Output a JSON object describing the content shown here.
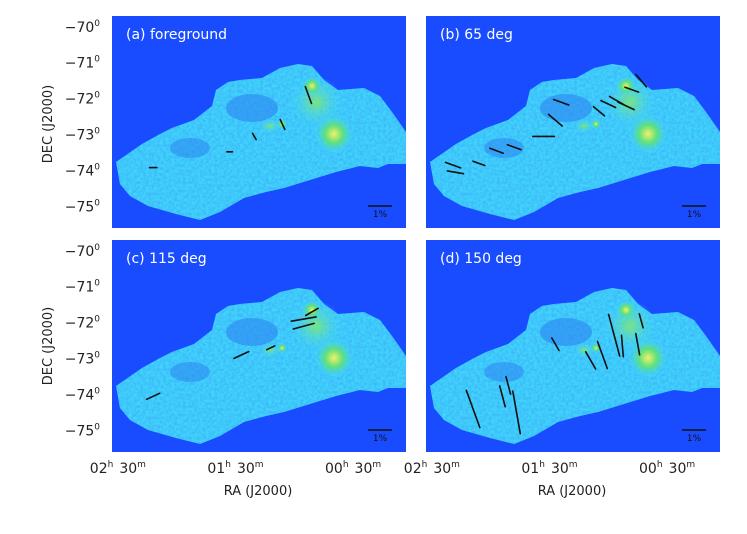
{
  "figure": {
    "ylabel": "DEC (J2000)",
    "xlabel": "RA (J2000)",
    "y_ticks": [
      {
        "deg": "−70",
        "sup": "0"
      },
      {
        "deg": "−71",
        "sup": "0"
      },
      {
        "deg": "−72",
        "sup": "0"
      },
      {
        "deg": "−73",
        "sup": "0"
      },
      {
        "deg": "−74",
        "sup": "0"
      },
      {
        "deg": "−75",
        "sup": "0"
      }
    ],
    "x_ticks": [
      {
        "h": "02",
        "hs": "h",
        "m": "30",
        "ms": "m"
      },
      {
        "h": "01",
        "hs": "h",
        "m": "30",
        "ms": "m"
      },
      {
        "h": "00",
        "hs": "h",
        "m": "30",
        "ms": "m"
      }
    ],
    "scale_bar_label": "1%",
    "colors": {
      "background": "#1a4cff",
      "map_cyan": "#3fd6ff",
      "map_green": "#39d36e",
      "map_yellow": "#d8f06a",
      "vector": "#111111",
      "panel_label": "#ffffff"
    }
  },
  "chart_data": [
    {
      "type": "scatter",
      "title": "(a) foreground",
      "xlabel": "",
      "ylabel": "DEC (J2000)",
      "ylim": [
        -75.6,
        -69.7
      ],
      "series": [
        {
          "values": [
            {
              "x": 0.88,
              "y": -71.9,
              "pa": 160,
              "len": 0.5
            },
            {
              "x": 1.1,
              "y": -72.72,
              "pa": 155,
              "len": 0.3
            },
            {
              "x": 1.34,
              "y": -73.05,
              "pa": 150,
              "len": 0.2
            },
            {
              "x": 1.55,
              "y": -73.48,
              "pa": 90,
              "len": 0.15
            },
            {
              "x": 2.2,
              "y": -73.92,
              "pa": 90,
              "len": 0.2
            }
          ]
        }
      ]
    },
    {
      "type": "scatter",
      "title": "(b) 65 deg",
      "xlabel": "",
      "ylabel": "",
      "ylim": [
        -75.6,
        -69.7
      ],
      "series": [
        {
          "values": [
            {
              "x": 0.72,
              "y": -71.5,
              "pa": 140,
              "len": 0.45
            },
            {
              "x": 0.8,
              "y": -71.75,
              "pa": 110,
              "len": 0.4
            },
            {
              "x": 0.85,
              "y": -72.2,
              "pa": 115,
              "len": 0.5
            },
            {
              "x": 0.93,
              "y": -72.05,
              "pa": 120,
              "len": 0.45
            },
            {
              "x": 1.0,
              "y": -72.15,
              "pa": 115,
              "len": 0.45
            },
            {
              "x": 1.08,
              "y": -72.35,
              "pa": 130,
              "len": 0.4
            },
            {
              "x": 1.4,
              "y": -72.1,
              "pa": 110,
              "len": 0.45
            },
            {
              "x": 1.45,
              "y": -72.6,
              "pa": 130,
              "len": 0.5
            },
            {
              "x": 1.55,
              "y": -73.05,
              "pa": 90,
              "len": 0.6
            },
            {
              "x": 1.8,
              "y": -73.35,
              "pa": 110,
              "len": 0.4
            },
            {
              "x": 1.95,
              "y": -73.45,
              "pa": 110,
              "len": 0.4
            },
            {
              "x": 2.1,
              "y": -73.8,
              "pa": 110,
              "len": 0.35
            },
            {
              "x": 2.32,
              "y": -73.85,
              "pa": 110,
              "len": 0.45
            },
            {
              "x": 2.3,
              "y": -74.05,
              "pa": 100,
              "len": 0.45
            }
          ]
        }
      ]
    },
    {
      "type": "scatter",
      "title": "(c) 115 deg",
      "xlabel": "RA (J2000)",
      "ylabel": "DEC (J2000)",
      "ylim": [
        -75.6,
        -69.7
      ],
      "series": [
        {
          "values": [
            {
              "x": 0.85,
              "y": -71.7,
              "pa": 60,
              "len": 0.4
            },
            {
              "x": 0.92,
              "y": -71.9,
              "pa": 80,
              "len": 0.7
            },
            {
              "x": 0.92,
              "y": -72.1,
              "pa": 75,
              "len": 0.6
            },
            {
              "x": 1.2,
              "y": -72.7,
              "pa": 65,
              "len": 0.25
            },
            {
              "x": 1.45,
              "y": -72.9,
              "pa": 65,
              "len": 0.45
            },
            {
              "x": 2.2,
              "y": -74.05,
              "pa": 65,
              "len": 0.4
            }
          ]
        }
      ]
    },
    {
      "type": "scatter",
      "title": "(d) 150 deg",
      "xlabel": "RA (J2000)",
      "ylabel": "",
      "ylim": [
        -75.6,
        -69.7
      ],
      "series": [
        {
          "values": [
            {
              "x": 0.72,
              "y": -71.95,
              "pa": 165,
              "len": 0.4
            },
            {
              "x": 0.75,
              "y": -72.6,
              "pa": 170,
              "len": 0.6
            },
            {
              "x": 0.88,
              "y": -72.65,
              "pa": 175,
              "len": 0.6
            },
            {
              "x": 0.95,
              "y": -72.35,
              "pa": 165,
              "len": 1.2
            },
            {
              "x": 1.05,
              "y": -72.9,
              "pa": 160,
              "len": 0.8
            },
            {
              "x": 1.15,
              "y": -73.05,
              "pa": 150,
              "len": 0.55
            },
            {
              "x": 1.45,
              "y": -72.6,
              "pa": 150,
              "len": 0.4
            },
            {
              "x": 1.85,
              "y": -73.75,
              "pa": 165,
              "len": 0.5
            },
            {
              "x": 1.9,
              "y": -74.05,
              "pa": 165,
              "len": 0.6
            },
            {
              "x": 1.78,
              "y": -74.5,
              "pa": 170,
              "len": 1.2
            },
            {
              "x": 2.15,
              "y": -74.4,
              "pa": 160,
              "len": 1.1
            }
          ]
        }
      ]
    }
  ]
}
